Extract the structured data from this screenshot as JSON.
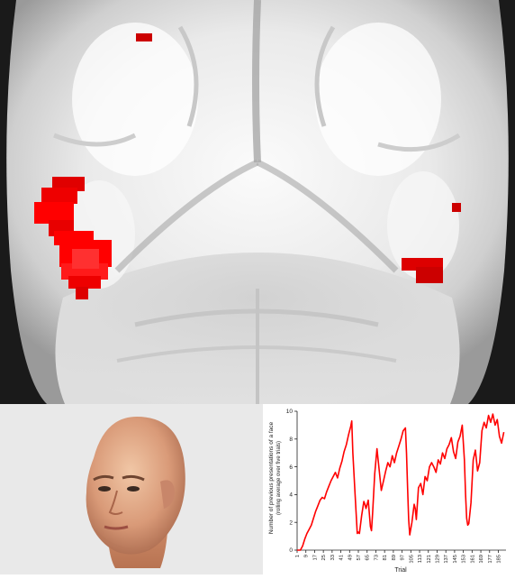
{
  "brain_panel": {
    "activation_color": "#ff0000"
  },
  "face_panel": {
    "icon": "face-render-icon"
  },
  "chart_data": {
    "type": "line",
    "ylabel": "Number of previous presentations of a face",
    "ylabel2": "(rolling average over five trials)",
    "xlabel": "Trial",
    "ylim": [
      0,
      10
    ],
    "yticks": [
      0,
      2,
      4,
      6,
      8,
      10
    ],
    "xlim": [
      1,
      192
    ],
    "xticks": [
      1,
      9,
      17,
      25,
      33,
      41,
      49,
      57,
      65,
      73,
      81,
      89,
      97,
      105,
      113,
      121,
      129,
      137,
      145,
      153,
      161,
      169,
      177,
      185
    ],
    "grid": false,
    "series": [
      {
        "color": "#ff0000",
        "x": [
          1,
          4,
          6,
          8,
          10,
          12,
          14,
          16,
          18,
          20,
          22,
          24,
          26,
          28,
          30,
          32,
          34,
          36,
          38,
          40,
          42,
          44,
          46,
          48,
          50,
          51,
          52,
          54,
          56,
          57,
          58,
          60,
          62,
          63,
          64,
          66,
          68,
          69,
          70,
          72,
          74,
          76,
          78,
          80,
          82,
          84,
          86,
          88,
          90,
          92,
          94,
          96,
          98,
          100,
          101,
          102,
          103,
          104,
          106,
          108,
          109,
          110,
          112,
          114,
          116,
          118,
          120,
          122,
          124,
          126,
          128,
          130,
          132,
          134,
          136,
          138,
          140,
          142,
          144,
          146,
          148,
          150,
          152,
          154,
          155,
          156,
          157,
          158,
          160,
          162,
          164,
          166,
          168,
          170,
          172,
          174,
          176,
          178,
          180,
          182,
          184,
          186,
          188,
          190
        ],
        "values": [
          0,
          0,
          0.3,
          0.8,
          1.2,
          1.5,
          1.8,
          2.3,
          2.8,
          3.2,
          3.6,
          3.8,
          3.7,
          4.2,
          4.6,
          5.0,
          5.3,
          5.6,
          5.2,
          5.9,
          6.4,
          7.1,
          7.6,
          8.3,
          8.9,
          9.3,
          7.0,
          4.0,
          1.2,
          1.3,
          1.2,
          2.5,
          3.5,
          3.3,
          3.0,
          3.6,
          1.7,
          1.4,
          2.6,
          5.5,
          7.3,
          5.8,
          4.3,
          5.0,
          5.7,
          6.3,
          6.0,
          6.8,
          6.3,
          7.0,
          7.5,
          8.0,
          8.6,
          8.8,
          7.0,
          4.5,
          2.2,
          1.1,
          2.0,
          3.3,
          3.0,
          2.2,
          4.5,
          4.8,
          4.0,
          5.3,
          5.0,
          6.0,
          6.3,
          6.0,
          5.6,
          6.5,
          6.2,
          7.0,
          6.6,
          7.3,
          7.6,
          8.1,
          7.1,
          6.6,
          7.8,
          8.2,
          9.0,
          6.5,
          4.0,
          2.3,
          1.8,
          1.9,
          3.4,
          6.5,
          7.2,
          5.7,
          6.3,
          8.6,
          9.2,
          8.8,
          9.7,
          9.2,
          9.8,
          9.0,
          9.4,
          8.2,
          7.7,
          8.5
        ]
      }
    ]
  }
}
